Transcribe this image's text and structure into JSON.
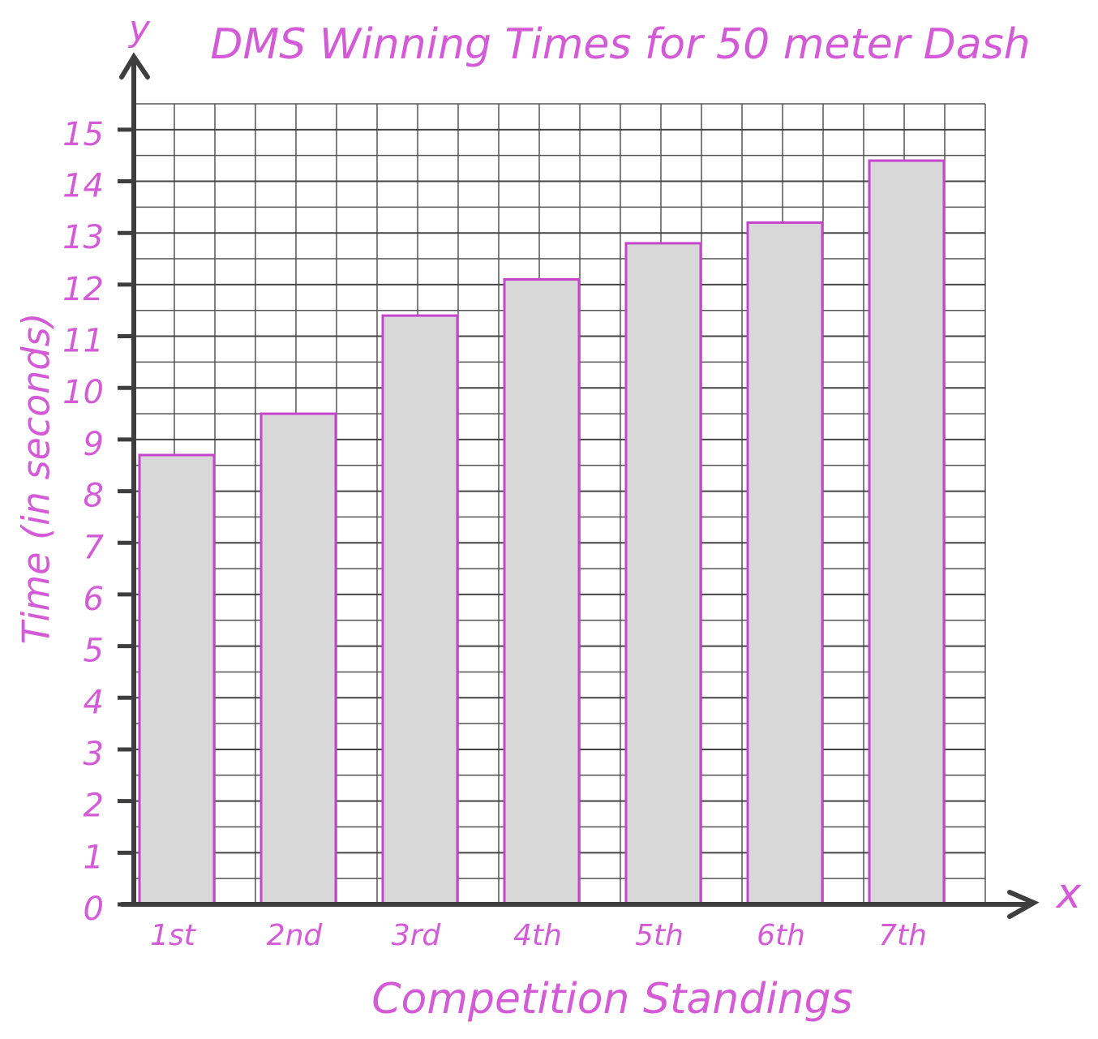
{
  "chart_data": {
    "type": "bar",
    "title": "DMS Winning Times for 50 meter Dash",
    "y_label": "Time (in seconds)",
    "x_label": "Competition Standings",
    "y_axis_letter": "y",
    "x_axis_letter": "x",
    "categories": [
      "1st",
      "2nd",
      "3rd",
      "4th",
      "5th",
      "6th",
      "7th"
    ],
    "values": [
      8.7,
      9.5,
      11.4,
      12.1,
      12.8,
      13.2,
      14.4
    ],
    "color": "#d8d8d8",
    "outline_color": "#c545cc",
    "ylim": [
      0,
      15.5
    ],
    "yticks": [
      0,
      1,
      2,
      3,
      4,
      5,
      6,
      7,
      8,
      9,
      10,
      11,
      12,
      13,
      14,
      15
    ],
    "grid": true
  }
}
